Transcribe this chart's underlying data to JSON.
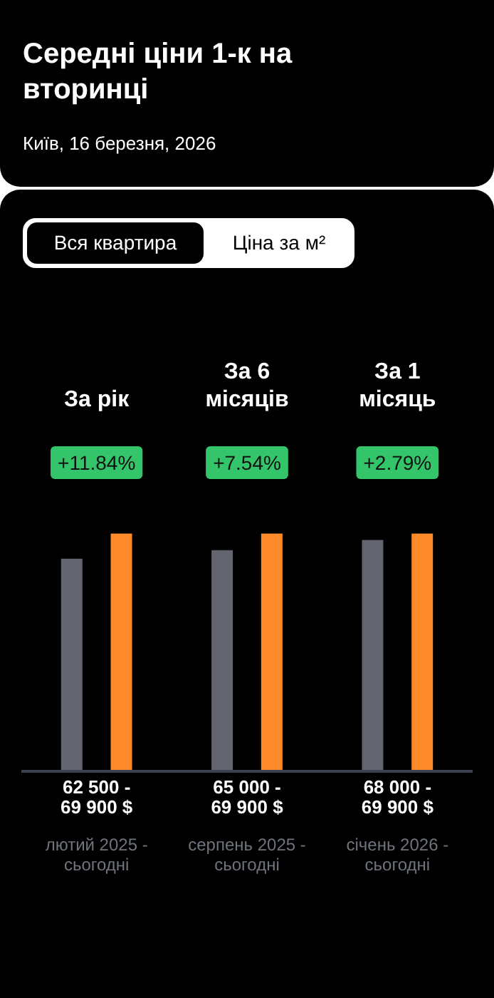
{
  "chart_data": {
    "type": "bar",
    "title": "Середні ціни 1-к на вторинці",
    "subtitle": "Київ, 16 березня, 2026",
    "categories": [
      "За рік",
      "За 6 місяців",
      "За 1 місяць"
    ],
    "series": [
      {
        "color": "#62656d",
        "values": [
          62500,
          65000,
          68000
        ],
        "value_labels": [
          "62 500 -",
          "65 000 -",
          "68 000 -"
        ]
      },
      {
        "color": "#ff8a2a",
        "values": [
          69900,
          69900,
          69900
        ],
        "value_labels": [
          "69 900 $",
          "69 900 $",
          "69 900 $"
        ]
      }
    ],
    "annotations": [
      "Вся квартира",
      "Ціна за м²",
      "+11.84%",
      "+7.54%",
      "+2.79%",
      "лютий 2025 - сьогодні",
      "серпень 2025 - сьогодні",
      "січень 2026 - сьогодні"
    ],
    "tick_labels": "x",
    "legend": false
  }
}
